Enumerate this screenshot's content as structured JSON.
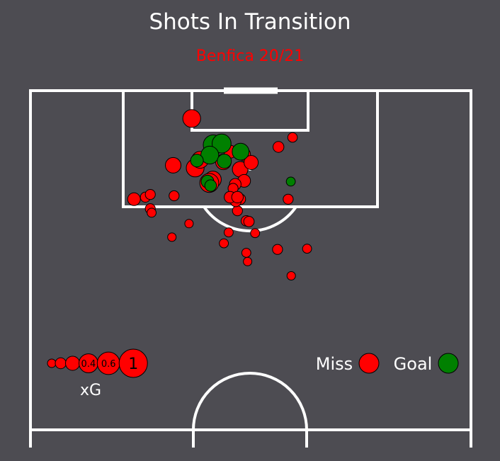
{
  "chart_data": {
    "type": "scatter",
    "title": "Shots In Transition",
    "subtitle": "Benfica 20/21",
    "colors": {
      "background": "#4d4c52",
      "miss": "#ff0000",
      "goal": "#008000",
      "subtitle": "#ff0000",
      "lines": "#ffffff"
    },
    "legend": {
      "miss_label": "Miss",
      "goal_label": "Goal",
      "placement": "bottom-right"
    },
    "size_legend": {
      "label": "xG",
      "markers": [
        {
          "xg": 0.05,
          "label": ""
        },
        {
          "xg": 0.1,
          "label": ""
        },
        {
          "xg": 0.2,
          "label": ""
        },
        {
          "xg": 0.4,
          "label": "0.4"
        },
        {
          "xg": 0.6,
          "label": "0.6"
        },
        {
          "xg": 1.0,
          "label": "1"
        }
      ]
    },
    "series": [
      {
        "name": "Miss",
        "points": [
          {
            "x": 91.7,
            "y": 56.3,
            "xg": 0.1
          },
          {
            "x": 93.1,
            "y": 59.5,
            "xg": 0.07
          },
          {
            "x": 88.4,
            "y": 47.6,
            "xg": 0.25
          },
          {
            "x": 95.9,
            "y": 36.6,
            "xg": 0.35
          },
          {
            "x": 86.9,
            "y": 41.4,
            "xg": 0.3
          },
          {
            "x": 86.4,
            "y": 40.6,
            "xg": 0.4
          },
          {
            "x": 88.6,
            "y": 37.4,
            "xg": 0.35
          },
          {
            "x": 91.0,
            "y": 45.4,
            "xg": 0.15
          },
          {
            "x": 89.8,
            "y": 38.5,
            "xg": 0.3
          },
          {
            "x": 89.0,
            "y": 32.4,
            "xg": 0.25
          },
          {
            "x": 89.5,
            "y": 43.8,
            "xg": 0.25
          },
          {
            "x": 90.6,
            "y": 48.5,
            "xg": 0.15
          },
          {
            "x": 89.4,
            "y": 50.1,
            "xg": 0.2
          },
          {
            "x": 86.7,
            "y": 48.5,
            "xg": 0.15
          },
          {
            "x": 86.2,
            "y": 46.5,
            "xg": 0.12
          },
          {
            "x": 84.0,
            "y": 47.6,
            "xg": 0.1
          },
          {
            "x": 82.3,
            "y": 47.0,
            "xg": 0.08
          },
          {
            "x": 80.8,
            "y": 49.0,
            "xg": 0.09
          },
          {
            "x": 80.7,
            "y": 49.6,
            "xg": 0.09
          },
          {
            "x": 84.0,
            "y": 58.5,
            "xg": 0.08
          },
          {
            "x": 85.6,
            "y": 46.0,
            "xg": 0.08
          },
          {
            "x": 84.0,
            "y": 23.5,
            "xg": 0.15
          },
          {
            "x": 84.3,
            "y": 26.1,
            "xg": 0.08
          },
          {
            "x": 76.6,
            "y": 56.1,
            "xg": 0.08
          },
          {
            "x": 76.7,
            "y": 62.8,
            "xg": 0.06
          },
          {
            "x": 83.7,
            "y": 46.6,
            "xg": 0.1
          },
          {
            "x": 84.3,
            "y": 45.3,
            "xg": 0.12
          },
          {
            "x": 84.3,
            "y": 47.0,
            "xg": 0.12
          },
          {
            "x": 84.5,
            "y": 32.6,
            "xg": 0.08
          },
          {
            "x": 84.7,
            "y": 27.2,
            "xg": 0.08
          },
          {
            "x": 82.6,
            "y": 27.2,
            "xg": 0.08
          },
          {
            "x": 82.0,
            "y": 27.5,
            "xg": 0.06
          },
          {
            "x": 79.0,
            "y": 51.0,
            "xg": 0.06
          },
          {
            "x": 77.5,
            "y": 43.9,
            "xg": 0.06
          },
          {
            "x": 76.1,
            "y": 49.0,
            "xg": 0.06
          },
          {
            "x": 74.8,
            "y": 49.3,
            "xg": 0.05
          },
          {
            "x": 72.7,
            "y": 59.2,
            "xg": 0.05
          },
          {
            "x": 79.1,
            "y": 45.0,
            "xg": 0.06
          },
          {
            "x": 80.4,
            "y": 36.0,
            "xg": 0.05
          },
          {
            "x": 78.4,
            "y": 32.1,
            "xg": 0.05
          }
        ]
      },
      {
        "name": "Goal",
        "points": [
          {
            "x": 92.0,
            "y": 41.5,
            "xg": 0.45
          },
          {
            "x": 92.2,
            "y": 43.4,
            "xg": 0.4
          },
          {
            "x": 90.5,
            "y": 40.7,
            "xg": 0.35
          },
          {
            "x": 89.6,
            "y": 44.0,
            "xg": 0.2
          },
          {
            "x": 91.0,
            "y": 47.7,
            "xg": 0.3
          },
          {
            "x": 89.7,
            "y": 37.8,
            "xg": 0.15
          },
          {
            "x": 86.6,
            "y": 40.2,
            "xg": 0.15
          },
          {
            "x": 86.0,
            "y": 40.9,
            "xg": 0.12
          },
          {
            "x": 86.6,
            "y": 59.1,
            "xg": 0.06
          }
        ]
      }
    ]
  }
}
